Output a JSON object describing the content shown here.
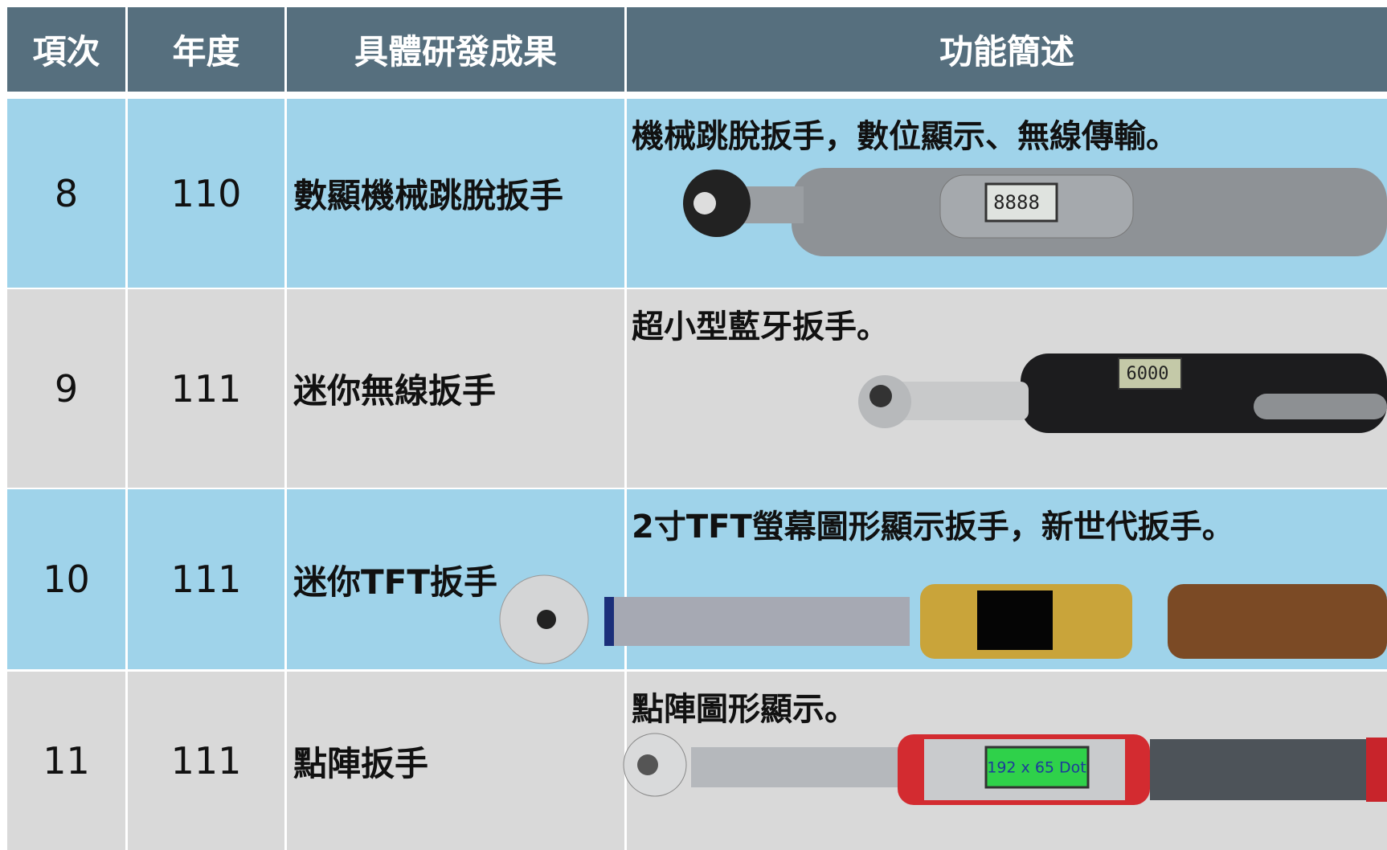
{
  "table": {
    "header": [
      "項次",
      "年度",
      "具體研發成果",
      "功能簡述"
    ],
    "rows": [
      {
        "item": "8",
        "year": "110",
        "name": "數顯機械跳脫扳手",
        "description": "機械跳脫扳手，數位顯示、無線傳輸。",
        "screen_text": "8888"
      },
      {
        "item": "9",
        "year": "111",
        "name": "迷你無線扳手",
        "description": "超小型藍牙扳手。",
        "screen_text": "6000"
      },
      {
        "item": "10",
        "year": "111",
        "name": "迷你TFT扳手",
        "description": "2寸TFT螢幕圖形顯示扳手，新世代扳手。"
      },
      {
        "item": "11",
        "year": "111",
        "name": "點陣扳手",
        "description": "點陣圖形顯示。",
        "screen_text": "192 x 65 Dot"
      }
    ]
  }
}
